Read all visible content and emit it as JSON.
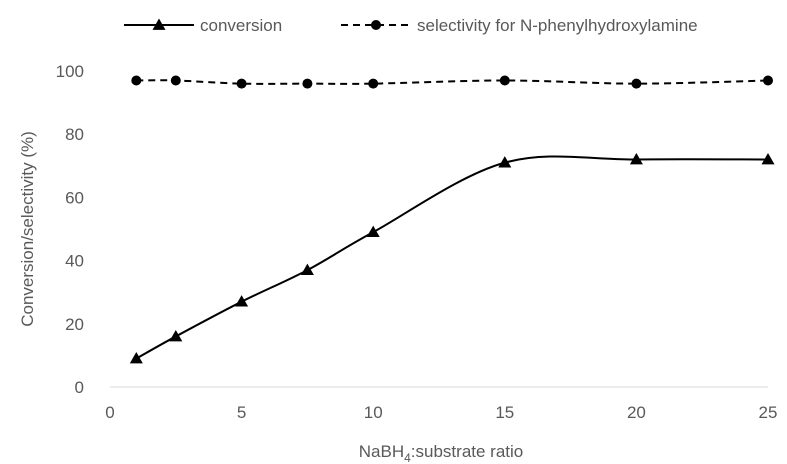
{
  "chart_data": {
    "type": "line",
    "title": "",
    "xlabel": {
      "prefix": "NaBH",
      "subscript": "4",
      "suffix": ":substrate ratio"
    },
    "ylabel": "Conversion/selectivity (%)",
    "xlim": [
      0,
      25
    ],
    "ylim": [
      0,
      100
    ],
    "xticks": [
      0,
      5,
      10,
      15,
      20,
      25
    ],
    "yticks": [
      0,
      20,
      40,
      60,
      80,
      100
    ],
    "grid": false,
    "legend_position": "top",
    "series": [
      {
        "name": "conversion",
        "marker": "triangle",
        "line_style": "solid",
        "smoothed": true,
        "color": "#000000",
        "x": [
          1,
          2.5,
          5,
          7.5,
          10,
          15,
          20,
          25
        ],
        "y": [
          9,
          16,
          27,
          37,
          49,
          71,
          72,
          72
        ]
      },
      {
        "name": "selectivity for N-phenylhydroxylamine",
        "marker": "circle",
        "line_style": "dashed",
        "smoothed": true,
        "color": "#000000",
        "x": [
          1,
          2.5,
          5,
          7.5,
          10,
          15,
          20,
          25
        ],
        "y": [
          97,
          97,
          96,
          96,
          96,
          97,
          96,
          97
        ]
      }
    ]
  }
}
